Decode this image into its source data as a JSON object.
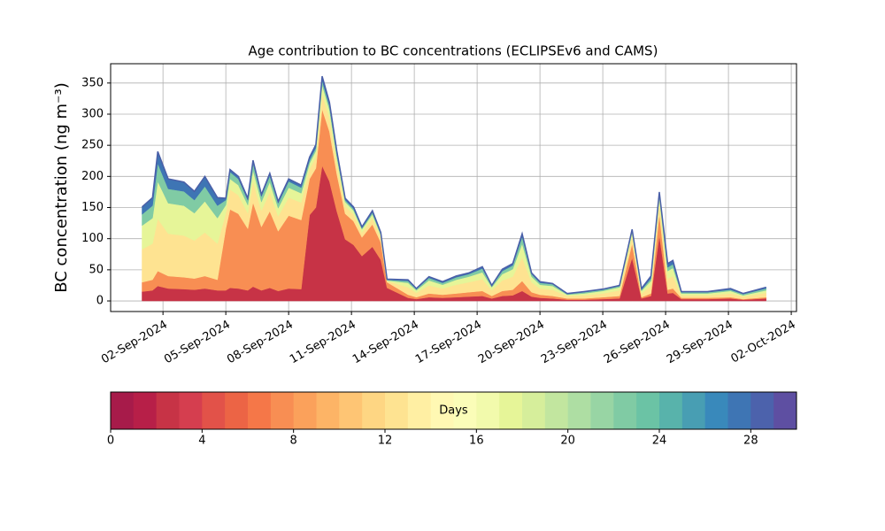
{
  "chart_data": {
    "type": "stacked_area",
    "title": "Age contribution to BC concentrations (ECLIPSEv6 and CAMS)",
    "y_label": "BC concentration (ng m⁻³)",
    "grid": true,
    "xlim": [
      -0.5,
      32.25
    ],
    "ylim": [
      -17,
      381
    ],
    "xticks": [
      {
        "value": 2,
        "label": "02-Sep-2024"
      },
      {
        "value": 5,
        "label": "05-Sep-2024"
      },
      {
        "value": 8,
        "label": "08-Sep-2024"
      },
      {
        "value": 11,
        "label": "11-Sep-2024"
      },
      {
        "value": 14,
        "label": "14-Sep-2024"
      },
      {
        "value": 17,
        "label": "17-Sep-2024"
      },
      {
        "value": 20,
        "label": "20-Sep-2024"
      },
      {
        "value": 23,
        "label": "23-Sep-2024"
      },
      {
        "value": 26,
        "label": "26-Sep-2024"
      },
      {
        "value": 29,
        "label": "29-Sep-2024"
      },
      {
        "value": 32,
        "label": "02-Oct-2024"
      }
    ],
    "yticks": [
      0,
      50,
      100,
      150,
      200,
      250,
      300,
      350
    ],
    "x": [
      1.0,
      1.5,
      1.75,
      2.25,
      3.0,
      3.5,
      4.0,
      4.6,
      5.0,
      5.2,
      5.6,
      6.05,
      6.3,
      6.7,
      7.1,
      7.5,
      8.0,
      8.6,
      9.0,
      9.3,
      9.6,
      9.95,
      10.3,
      10.7,
      11.1,
      11.5,
      12.0,
      12.4,
      12.7,
      13.7,
      14.1,
      14.7,
      15.35,
      16.0,
      16.6,
      17.25,
      17.7,
      18.2,
      18.7,
      19.15,
      19.6,
      20.0,
      20.6,
      21.3,
      22.1,
      23.0,
      23.8,
      24.4,
      24.85,
      25.3,
      25.7,
      26.1,
      26.35,
      26.75,
      28.0,
      29.1,
      29.7,
      30.8
    ],
    "series": [
      {
        "color": "#c73346",
        "values": [
          15,
          17,
          24,
          20,
          19,
          18,
          20,
          17,
          17,
          21,
          20,
          17,
          23,
          17,
          21,
          16,
          20,
          19,
          138,
          150,
          217,
          192,
          144,
          99,
          90,
          72,
          87,
          66,
          21,
          5,
          3,
          6,
          5,
          6,
          7,
          8,
          4,
          8,
          9,
          16,
          7,
          5,
          4,
          2,
          2,
          3,
          4,
          69,
          4,
          8,
          105,
          12,
          13,
          3,
          3,
          4,
          2,
          4
        ]
      },
      {
        "color": "#f88e53",
        "values": [
          15,
          17,
          24,
          20,
          19,
          18,
          20,
          17,
          99,
          126,
          120,
          99,
          135,
          102,
          123,
          96,
          117,
          111,
          58,
          63,
          91,
          80,
          60,
          41,
          38,
          30,
          36,
          28,
          9,
          5,
          3,
          6,
          5,
          6,
          7,
          8,
          4,
          8,
          9,
          16,
          7,
          5,
          4,
          2,
          2,
          3,
          4,
          23,
          2,
          4,
          35,
          6,
          7,
          2,
          2,
          2,
          1,
          2
        ]
      },
      {
        "color": "#fee391",
        "values": [
          53,
          58,
          84,
          68,
          67,
          61,
          70,
          58,
          25,
          32,
          30,
          25,
          34,
          26,
          31,
          24,
          29,
          28,
          16,
          18,
          25,
          22,
          17,
          12,
          11,
          8,
          10,
          8,
          2,
          12,
          7,
          13,
          10,
          14,
          16,
          19,
          9,
          17,
          21,
          38,
          16,
          10,
          10,
          4,
          5,
          6,
          9,
          12,
          6,
          12,
          18,
          18,
          20,
          4,
          4,
          6,
          4,
          7
        ]
      },
      {
        "color": "#e6f598",
        "values": [
          38,
          41,
          60,
          49,
          48,
          44,
          50,
          41,
          13,
          17,
          16,
          13,
          18,
          14,
          16,
          13,
          16,
          15,
          9,
          10,
          14,
          13,
          10,
          7,
          6,
          5,
          6,
          4,
          1,
          7,
          4,
          8,
          6,
          8,
          9,
          11,
          5,
          10,
          12,
          22,
          9,
          6,
          6,
          2,
          3,
          4,
          5,
          6,
          4,
          8,
          9,
          12,
          13,
          3,
          3,
          4,
          2,
          4
        ]
      },
      {
        "color": "#80cba4",
        "values": [
          18,
          20,
          29,
          23,
          23,
          21,
          24,
          20,
          8,
          11,
          10,
          8,
          11,
          9,
          10,
          8,
          10,
          9,
          5,
          5,
          7,
          6,
          5,
          3,
          3,
          2,
          3,
          2,
          1,
          3,
          2,
          4,
          3,
          4,
          4,
          6,
          2,
          5,
          6,
          11,
          4,
          3,
          3,
          1,
          2,
          2,
          2,
          3,
          2,
          4,
          5,
          6,
          6,
          2,
          2,
          2,
          2,
          3
        ]
      },
      {
        "color": "#3e75b4",
        "values": [
          12,
          13,
          19,
          16,
          15,
          14,
          16,
          13,
          3,
          4,
          4,
          3,
          5,
          3,
          4,
          3,
          4,
          4,
          5,
          5,
          7,
          6,
          5,
          3,
          3,
          2,
          3,
          2,
          1,
          2,
          1,
          2,
          2,
          2,
          2,
          3,
          1,
          3,
          3,
          5,
          2,
          2,
          1,
          1,
          1,
          1,
          1,
          2,
          2,
          4,
          3,
          6,
          6,
          1,
          1,
          2,
          1,
          2
        ]
      }
    ],
    "colorbar": {
      "label": "Days",
      "lim": [
        0,
        30
      ],
      "ticks": [
        0,
        4,
        8,
        12,
        16,
        20,
        24,
        28
      ],
      "colors": [
        "#a71b4a",
        "#b71f48",
        "#c73346",
        "#d53e4f",
        "#e25249",
        "#ec6445",
        "#f57748",
        "#f88e53",
        "#fba15b",
        "#fdb466",
        "#fec574",
        "#fed683",
        "#fee391",
        "#ffefa3",
        "#fff8b3",
        "#fbfdb8",
        "#f2faac",
        "#e6f598",
        "#d6ee9b",
        "#c2e69f",
        "#aedea3",
        "#98d5a4",
        "#80cba4",
        "#6bc3a5",
        "#58b3ab",
        "#489eb3",
        "#3989bb",
        "#3e75b4",
        "#4c62ac",
        "#5e4fa2"
      ]
    }
  }
}
